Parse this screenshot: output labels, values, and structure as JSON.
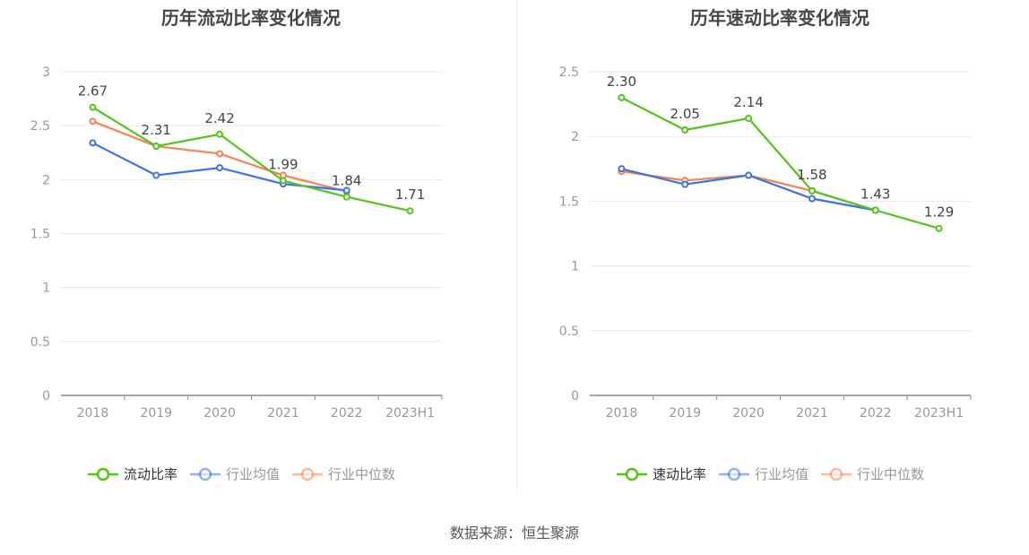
{
  "source": "数据来源：恒生聚源",
  "chart_data": [
    {
      "type": "line",
      "title": "历年流动比率变化情况",
      "categories": [
        "2018",
        "2019",
        "2020",
        "2021",
        "2022",
        "2023H1"
      ],
      "ylim": [
        0,
        3
      ],
      "yticks": [
        "0",
        "0.5",
        "1",
        "1.5",
        "2",
        "2.5",
        "3"
      ],
      "ytick_values": [
        0,
        0.5,
        1,
        1.5,
        2,
        2.5,
        3
      ],
      "legend_position": "bottom",
      "series": [
        {
          "name": "流动比率",
          "color": "#52c41a",
          "values": [
            2.67,
            2.31,
            2.42,
            1.99,
            1.84,
            1.71
          ],
          "labels": [
            "2.67",
            "2.31",
            "2.42",
            "1.99",
            "1.84",
            "1.71"
          ],
          "active": true
        },
        {
          "name": "行业均值",
          "color": "#3b73e8",
          "values": [
            2.34,
            2.04,
            2.11,
            1.96,
            1.9,
            null
          ],
          "active": false
        },
        {
          "name": "行业中位数",
          "color": "#f5824f",
          "values": [
            2.54,
            2.31,
            2.24,
            2.04,
            1.89,
            null
          ],
          "active": false
        }
      ]
    },
    {
      "type": "line",
      "title": "历年速动比率变化情况",
      "categories": [
        "2018",
        "2019",
        "2020",
        "2021",
        "2022",
        "2023H1"
      ],
      "ylim": [
        0,
        2.5
      ],
      "yticks": [
        "0",
        "0.5",
        "1",
        "1.5",
        "2",
        "2.5"
      ],
      "ytick_values": [
        0,
        0.5,
        1,
        1.5,
        2,
        2.5
      ],
      "legend_position": "bottom",
      "series": [
        {
          "name": "速动比率",
          "color": "#52c41a",
          "values": [
            2.3,
            2.05,
            2.14,
            1.58,
            1.43,
            1.29
          ],
          "labels": [
            "2.30",
            "2.05",
            "2.14",
            "1.58",
            "1.43",
            "1.29"
          ],
          "active": true
        },
        {
          "name": "行业均值",
          "color": "#3b73e8",
          "values": [
            1.75,
            1.63,
            1.7,
            1.52,
            1.43,
            null
          ],
          "active": false
        },
        {
          "name": "行业中位数",
          "color": "#f5824f",
          "values": [
            1.73,
            1.66,
            1.7,
            1.58,
            1.43,
            null
          ],
          "active": false
        }
      ]
    }
  ]
}
